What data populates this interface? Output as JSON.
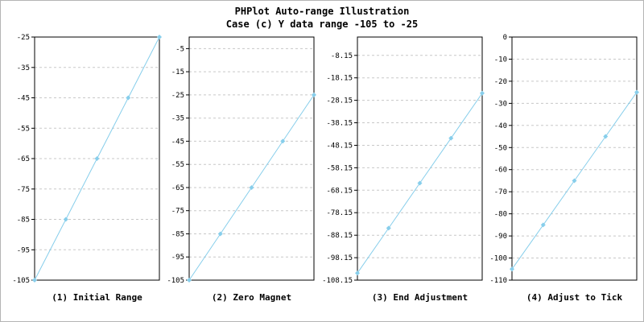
{
  "page": {
    "title_line1": "PHPlot Auto-range Illustration",
    "title_line2": "Case (c) Y data range -105 to -25"
  },
  "style": {
    "line_color": "#87ceeb",
    "marker_color": "#87ceeb",
    "grid_color": "#c8c8c8",
    "border_color": "#000000",
    "text_color": "#000000",
    "background": "#ffffff"
  },
  "chart_data": [
    {
      "type": "line",
      "caption": "(1) Initial Range",
      "x": [
        1,
        2,
        3,
        4,
        5
      ],
      "y": [
        -105,
        -85,
        -65,
        -45,
        -25
      ],
      "ylim": [
        -105,
        -25
      ],
      "yticks": [
        -25,
        -35,
        -45,
        -55,
        -65,
        -75,
        -85,
        -95,
        -105
      ],
      "ytick_labels": [
        "-25",
        "-35",
        "-45",
        "-55",
        "-65",
        "-75",
        "-85",
        "-95",
        "-105"
      ],
      "grid": true,
      "legend": "none"
    },
    {
      "type": "line",
      "caption": "(2) Zero Magnet",
      "x": [
        1,
        2,
        3,
        4,
        5
      ],
      "y": [
        -105,
        -85,
        -65,
        -45,
        -25
      ],
      "ylim": [
        -105,
        0
      ],
      "yticks": [
        -5,
        -15,
        -25,
        -35,
        -45,
        -55,
        -65,
        -75,
        -85,
        -95,
        -105
      ],
      "ytick_labels": [
        "-5",
        "-15",
        "-25",
        "-35",
        "-45",
        "-55",
        "-65",
        "-75",
        "-85",
        "-95",
        "-105"
      ],
      "grid": true,
      "legend": "none"
    },
    {
      "type": "line",
      "caption": "(3) End Adjustment",
      "x": [
        1,
        2,
        3,
        4,
        5
      ],
      "y": [
        -105,
        -85,
        -65,
        -45,
        -25
      ],
      "ylim": [
        -108.15,
        0
      ],
      "yticks": [
        -8.15,
        -18.15,
        -28.15,
        -38.15,
        -48.15,
        -58.15,
        -68.15,
        -78.15,
        -88.15,
        -98.15,
        -108.15
      ],
      "ytick_labels": [
        "-8.15",
        "-18.15",
        "-28.15",
        "-38.15",
        "-48.15",
        "-58.15",
        "-68.15",
        "-78.15",
        "-88.15",
        "-98.15",
        "-108.15"
      ],
      "grid": true,
      "legend": "none"
    },
    {
      "type": "line",
      "caption": "(4) Adjust to Tick",
      "x": [
        1,
        2,
        3,
        4,
        5
      ],
      "y": [
        -105,
        -85,
        -65,
        -45,
        -25
      ],
      "ylim": [
        -110,
        0
      ],
      "yticks": [
        0,
        -10,
        -20,
        -30,
        -40,
        -50,
        -60,
        -70,
        -80,
        -90,
        -100,
        -110
      ],
      "ytick_labels": [
        "0",
        "-10",
        "-20",
        "-30",
        "-40",
        "-50",
        "-60",
        "-70",
        "-80",
        "-90",
        "-100",
        "-110"
      ],
      "grid": true,
      "legend": "none"
    }
  ]
}
